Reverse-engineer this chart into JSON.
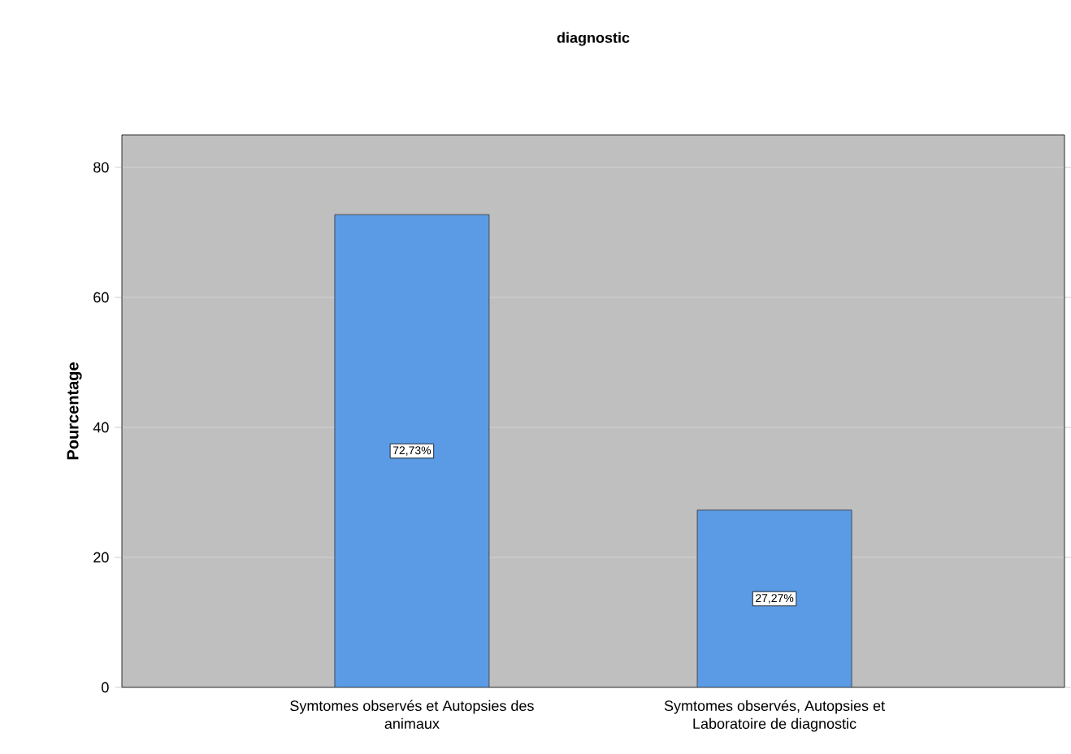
{
  "chart_data": {
    "type": "bar",
    "title": "diagnostic",
    "ylabel": "Pourcentage",
    "categories": [
      "Symtomes observés et Autopsies des animaux",
      "Symtomes observés, Autopsies et Laboratoire de diagnostic"
    ],
    "values": [
      72.73,
      27.27
    ],
    "value_labels": [
      "72,73%",
      "27,27%"
    ],
    "color": "#5b9be6",
    "ylim": [
      0,
      85
    ],
    "yticks": [
      0,
      20,
      40,
      60,
      80
    ],
    "grid": "y"
  }
}
